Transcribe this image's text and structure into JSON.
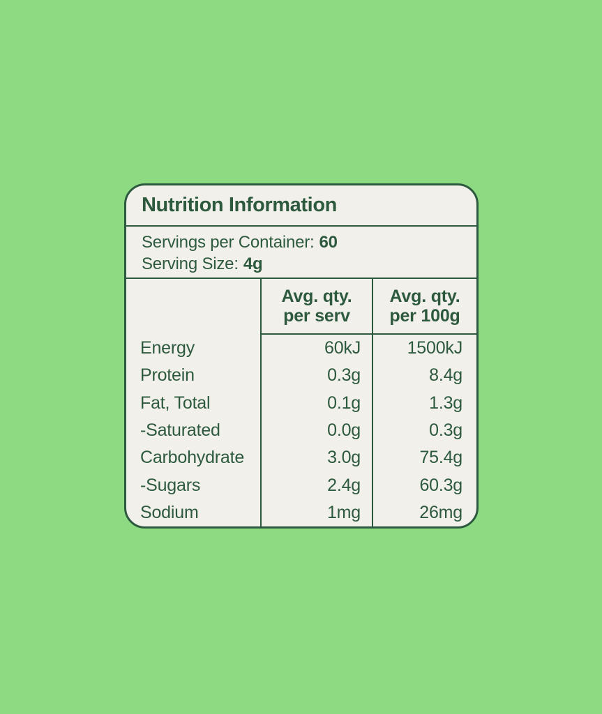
{
  "theme": {
    "background_color": "#8EDA82",
    "panel_background": "#F2F0EA",
    "ink_color": "#2D5A3F"
  },
  "panel": {
    "title": "Nutrition Information",
    "servings": {
      "per_container_label": "Servings per Container:",
      "per_container_value": "60",
      "size_label": "Serving Size:",
      "size_value": "4g"
    },
    "table": {
      "headers": {
        "per_serv_line1": "Avg. qty.",
        "per_serv_line2": "per serv",
        "per_100g_line1": "Avg. qty.",
        "per_100g_line2": "per 100g"
      },
      "rows": [
        {
          "label": "Energy",
          "per_serv": "60kJ",
          "per_100g": "1500kJ"
        },
        {
          "label": "Protein",
          "per_serv": "0.3g",
          "per_100g": "8.4g"
        },
        {
          "label": "Fat, Total",
          "per_serv": "0.1g",
          "per_100g": "1.3g"
        },
        {
          "label": "-Saturated",
          "per_serv": "0.0g",
          "per_100g": "0.3g"
        },
        {
          "label": "Carbohydrate",
          "per_serv": "3.0g",
          "per_100g": "75.4g"
        },
        {
          "label": "-Sugars",
          "per_serv": "2.4g",
          "per_100g": "60.3g"
        },
        {
          "label": "Sodium",
          "per_serv": "1mg",
          "per_100g": "26mg"
        }
      ]
    }
  }
}
